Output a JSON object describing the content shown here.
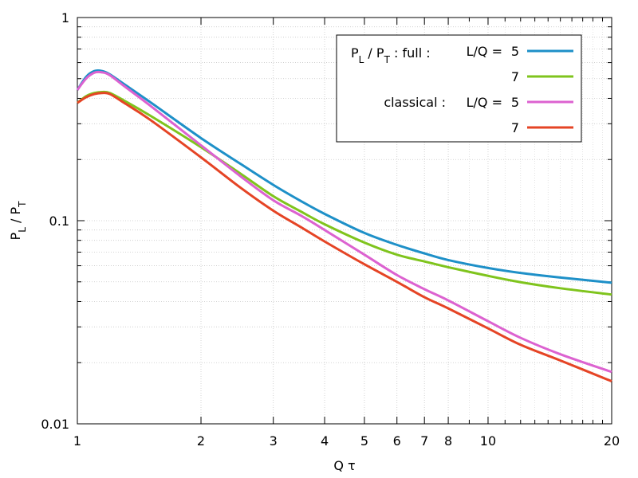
{
  "chart_data": {
    "type": "line",
    "xlabel": "Q τ",
    "ylabel": {
      "main": "P",
      "sub1": "L",
      "mid": " / P",
      "sub2": "T"
    },
    "xscale": "log",
    "yscale": "log",
    "xlim": [
      1,
      20
    ],
    "ylim": [
      0.01,
      1
    ],
    "grid": true,
    "legend_position": "top-right",
    "x_ticks": [
      {
        "value": 1,
        "label": "1"
      },
      {
        "value": 2,
        "label": "2"
      },
      {
        "value": 3,
        "label": "3"
      },
      {
        "value": 4,
        "label": "4"
      },
      {
        "value": 5,
        "label": "5"
      },
      {
        "value": 6,
        "label": "6"
      },
      {
        "value": 7,
        "label": "7"
      },
      {
        "value": 8,
        "label": "8"
      },
      {
        "value": 10,
        "label": "10"
      },
      {
        "value": 20,
        "label": "20"
      }
    ],
    "y_ticks": [
      {
        "value": 0.01,
        "label": "0.01"
      },
      {
        "value": 0.1,
        "label": "0.1"
      },
      {
        "value": 1,
        "label": "1"
      }
    ],
    "legend": {
      "title_main": "P",
      "title_sub1": "L",
      "title_mid": " / P",
      "title_sub2": "T",
      "title_tail": " :  full :",
      "param_label": "L/Q =",
      "group2": "classical :"
    },
    "series": [
      {
        "name": "5",
        "color": "#1e90c8",
        "x": [
          1,
          1.05,
          1.1,
          1.15,
          1.2,
          1.3,
          1.5,
          2,
          2.5,
          3,
          3.5,
          4,
          5,
          6,
          7,
          8,
          10,
          12,
          15,
          20
        ],
        "y": [
          0.44,
          0.51,
          0.545,
          0.545,
          0.525,
          0.47,
          0.385,
          0.255,
          0.19,
          0.15,
          0.125,
          0.108,
          0.087,
          0.076,
          0.069,
          0.064,
          0.0585,
          0.0553,
          0.0525,
          0.0495
        ]
      },
      {
        "name": "7",
        "color": "#7fc41d",
        "x": [
          1,
          1.05,
          1.1,
          1.15,
          1.2,
          1.3,
          1.5,
          2,
          2.5,
          3,
          3.5,
          4,
          5,
          6,
          7,
          8,
          10,
          12,
          15,
          20
        ],
        "y": [
          0.38,
          0.41,
          0.425,
          0.43,
          0.425,
          0.39,
          0.33,
          0.23,
          0.17,
          0.132,
          0.111,
          0.096,
          0.078,
          0.068,
          0.063,
          0.059,
          0.0535,
          0.0498,
          0.0465,
          0.0433
        ]
      },
      {
        "name": "5",
        "color": "#dc62d0",
        "x": [
          1,
          1.05,
          1.1,
          1.15,
          1.2,
          1.3,
          1.5,
          2,
          2.5,
          3,
          3.5,
          4,
          5,
          6,
          7,
          8,
          10,
          12,
          15,
          20
        ],
        "y": [
          0.44,
          0.5,
          0.535,
          0.537,
          0.52,
          0.46,
          0.37,
          0.235,
          0.165,
          0.126,
          0.106,
          0.09,
          0.068,
          0.054,
          0.046,
          0.0405,
          0.032,
          0.0265,
          0.022,
          0.018
        ]
      },
      {
        "name": "7",
        "color": "#e54425",
        "x": [
          1,
          1.05,
          1.1,
          1.15,
          1.2,
          1.3,
          1.5,
          2,
          2.5,
          3,
          3.5,
          4,
          5,
          6,
          7,
          8,
          10,
          12,
          15,
          20
        ],
        "y": [
          0.38,
          0.405,
          0.42,
          0.425,
          0.42,
          0.38,
          0.315,
          0.205,
          0.145,
          0.112,
          0.093,
          0.079,
          0.061,
          0.05,
          0.042,
          0.037,
          0.0295,
          0.0245,
          0.0205,
          0.0162
        ]
      }
    ]
  }
}
